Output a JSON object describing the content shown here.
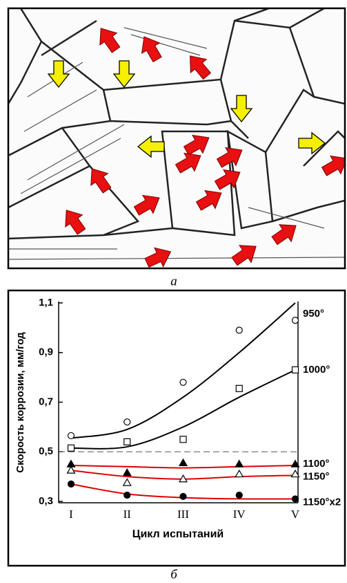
{
  "labels": {
    "a": "а",
    "b": "б"
  },
  "chart_data": {
    "type": "line",
    "y_label": "Скорость коррозии, мм/год",
    "x_label": "Цикл испытаний",
    "categories": [
      "I",
      "II",
      "III",
      "IV",
      "V"
    ],
    "ylim": [
      0.3,
      1.1
    ],
    "yticks": [
      {
        "value": 0.3,
        "label": "0,3"
      },
      {
        "value": 0.5,
        "label": "0,5"
      },
      {
        "value": 0.7,
        "label": "0,7"
      },
      {
        "value": 0.9,
        "label": "0,9"
      },
      {
        "value": 1.1,
        "label": "1,1"
      }
    ],
    "dashed_line": 0.5,
    "series": [
      {
        "name": "950°",
        "marker": "circle",
        "filled": false,
        "color": "#000000",
        "values": [
          0.565,
          0.62,
          0.78,
          0.99,
          1.03
        ],
        "trend": [
          0.555,
          0.59,
          0.72,
          0.9,
          1.1
        ]
      },
      {
        "name": "1000°",
        "marker": "square",
        "filled": false,
        "color": "#000000",
        "values": [
          0.515,
          0.54,
          0.55,
          0.755,
          0.83
        ],
        "trend": [
          0.515,
          0.52,
          0.6,
          0.72,
          0.83
        ]
      },
      {
        "name": "1100°",
        "marker": "triangle",
        "filled": true,
        "color": "#e00000",
        "values": [
          0.45,
          0.415,
          0.455,
          0.45,
          0.45
        ],
        "trend": [
          0.445,
          0.44,
          0.435,
          0.44,
          0.445
        ]
      },
      {
        "name": "1150°",
        "marker": "triangle",
        "filled": false,
        "color": "#e00000",
        "values": [
          0.425,
          0.375,
          0.39,
          0.41,
          0.41
        ],
        "trend": [
          0.425,
          0.4,
          0.39,
          0.4,
          0.405
        ]
      },
      {
        "name": "1150°x2",
        "marker": "circle",
        "filled": true,
        "color": "#e00000",
        "values": [
          0.37,
          0.325,
          0.32,
          0.325,
          0.31
        ],
        "trend": [
          0.37,
          0.33,
          0.315,
          0.31,
          0.31
        ]
      }
    ]
  }
}
